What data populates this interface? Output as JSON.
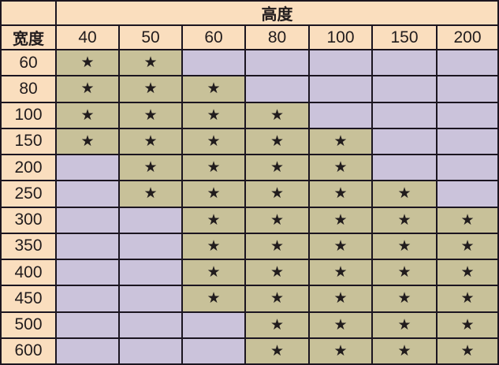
{
  "table": {
    "col_group_label": "高度",
    "row_group_label": "宽度",
    "corner_label": "",
    "columns": [
      "40",
      "50",
      "60",
      "80",
      "100",
      "150",
      "200"
    ],
    "rows": [
      {
        "label": "60",
        "cells": [
          1,
          1,
          0,
          0,
          0,
          0,
          0
        ]
      },
      {
        "label": "80",
        "cells": [
          1,
          1,
          1,
          0,
          0,
          0,
          0
        ]
      },
      {
        "label": "100",
        "cells": [
          1,
          1,
          1,
          1,
          0,
          0,
          0
        ]
      },
      {
        "label": "150",
        "cells": [
          1,
          1,
          1,
          1,
          1,
          0,
          0
        ]
      },
      {
        "label": "200",
        "cells": [
          0,
          1,
          1,
          1,
          1,
          0,
          0
        ]
      },
      {
        "label": "250",
        "cells": [
          0,
          1,
          1,
          1,
          1,
          1,
          0
        ]
      },
      {
        "label": "300",
        "cells": [
          0,
          0,
          1,
          1,
          1,
          1,
          1
        ]
      },
      {
        "label": "350",
        "cells": [
          0,
          0,
          1,
          1,
          1,
          1,
          1
        ]
      },
      {
        "label": "400",
        "cells": [
          0,
          0,
          1,
          1,
          1,
          1,
          1
        ]
      },
      {
        "label": "450",
        "cells": [
          0,
          0,
          1,
          1,
          1,
          1,
          1
        ]
      },
      {
        "label": "500",
        "cells": [
          0,
          0,
          0,
          1,
          1,
          1,
          1
        ]
      },
      {
        "label": "600",
        "cells": [
          0,
          0,
          0,
          1,
          1,
          1,
          1
        ]
      }
    ],
    "star_glyph": "★",
    "colors": {
      "header_bg": "#fadebe",
      "star_bg": "#c8c199",
      "empty_bg": "#cbc3db",
      "grid": "#1b1520",
      "text": "#211c1d"
    }
  },
  "chart_data": {
    "type": "table",
    "title": "",
    "col_axis_label": "高度",
    "row_axis_label": "宽度",
    "columns": [
      40,
      50,
      60,
      80,
      100,
      150,
      200
    ],
    "rows": [
      60,
      80,
      100,
      150,
      200,
      250,
      300,
      350,
      400,
      450,
      500,
      600
    ],
    "marker": "★",
    "matrix": [
      [
        1,
        1,
        0,
        0,
        0,
        0,
        0
      ],
      [
        1,
        1,
        1,
        0,
        0,
        0,
        0
      ],
      [
        1,
        1,
        1,
        1,
        0,
        0,
        0
      ],
      [
        1,
        1,
        1,
        1,
        1,
        0,
        0
      ],
      [
        0,
        1,
        1,
        1,
        1,
        0,
        0
      ],
      [
        0,
        1,
        1,
        1,
        1,
        1,
        0
      ],
      [
        0,
        0,
        1,
        1,
        1,
        1,
        1
      ],
      [
        0,
        0,
        1,
        1,
        1,
        1,
        1
      ],
      [
        0,
        0,
        1,
        1,
        1,
        1,
        1
      ],
      [
        0,
        0,
        1,
        1,
        1,
        1,
        1
      ],
      [
        0,
        0,
        0,
        1,
        1,
        1,
        1
      ],
      [
        0,
        0,
        0,
        1,
        1,
        1,
        1
      ]
    ]
  }
}
